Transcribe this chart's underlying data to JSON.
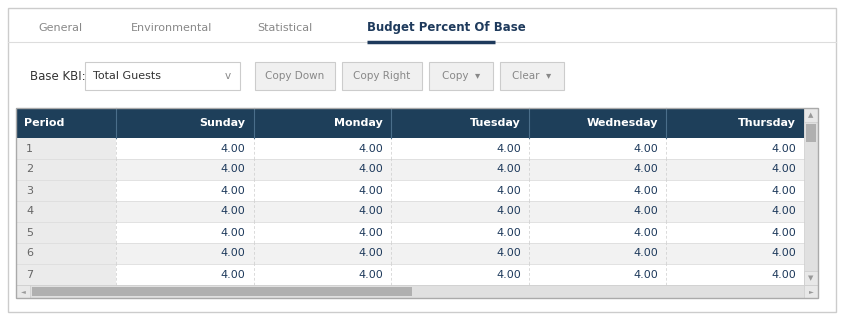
{
  "tabs": [
    "General",
    "Environmental",
    "Statistical",
    "Budget Percent Of Base"
  ],
  "active_tab": "Budget Percent Of Base",
  "active_tab_color": "#1e3a5c",
  "inactive_tab_color": "#888888",
  "tab_underline_color": "#1e3a5c",
  "base_kbi_label": "Base KBI:",
  "base_kbi_value": "Total Guests",
  "header_bg": "#1e3f5a",
  "header_text_color": "#ffffff",
  "columns": [
    "Period",
    "Sunday",
    "Monday",
    "Tuesday",
    "Wednesday",
    "Thursday"
  ],
  "rows": [
    1,
    2,
    3,
    4,
    5,
    6,
    7
  ],
  "cell_value": "4.00",
  "row_bg_odd": "#ffffff",
  "row_bg_even": "#f2f2f2",
  "period_bg": "#ebebeb",
  "row_text_color": "#1e3a5c",
  "period_text_color": "#666666",
  "separator_color": "#dddddd",
  "scrollbar_bg": "#e0e0e0",
  "scrollbar_thumb": "#b0b0b0",
  "outer_border": "#cccccc",
  "figwidth": 8.44,
  "figheight": 3.2,
  "dpi": 100
}
